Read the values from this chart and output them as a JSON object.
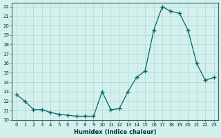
{
  "xlabel": "Humidex (Indice chaleur)",
  "x_values": [
    0,
    1,
    2,
    3,
    4,
    5,
    6,
    7,
    8,
    9,
    10,
    11,
    12,
    13,
    14,
    15,
    16,
    17,
    18,
    19,
    20,
    21,
    22,
    23
  ],
  "y_values": [
    12.7,
    12.0,
    11.1,
    11.1,
    10.8,
    10.6,
    10.5,
    10.4,
    10.4,
    10.4,
    13.0,
    11.1,
    11.2,
    13.0,
    14.5,
    15.2,
    19.5,
    22.0,
    21.5,
    21.3,
    19.5,
    16.0,
    14.2,
    14.5
  ],
  "line_color": "#006666",
  "marker_color": "#006666",
  "bg_color": "#d4f0ed",
  "grid_color": "#a8d8d4",
  "ylim": [
    10,
    22.4
  ],
  "xlim": [
    -0.5,
    23.5
  ],
  "yticks": [
    10,
    11,
    12,
    13,
    14,
    15,
    16,
    17,
    18,
    19,
    20,
    21,
    22
  ],
  "xticks": [
    0,
    1,
    2,
    3,
    4,
    5,
    6,
    7,
    8,
    9,
    10,
    11,
    12,
    13,
    14,
    15,
    16,
    17,
    18,
    19,
    20,
    21,
    22,
    23
  ],
  "tick_fontsize": 5,
  "xlabel_fontsize": 6
}
